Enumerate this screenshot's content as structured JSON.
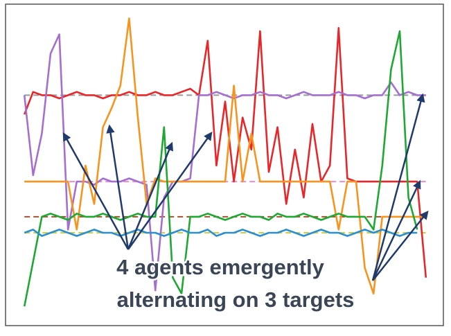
{
  "chart_data": {
    "type": "line",
    "annotation": [
      "4 agents emergently",
      "alternating on 3 targets"
    ],
    "xlim": [
      0,
      100
    ],
    "ylim": [
      0,
      100
    ],
    "x": [
      4,
      6,
      8,
      10,
      12,
      14,
      16,
      18,
      20,
      22,
      24,
      26,
      28,
      30,
      32,
      34,
      36,
      38,
      40,
      42,
      44,
      46,
      48,
      50,
      52,
      54,
      56,
      58,
      60,
      62,
      64,
      66,
      68,
      70,
      72,
      74,
      76,
      78,
      80,
      82,
      84,
      86,
      88,
      90,
      92,
      94,
      96
    ],
    "reference_lines": [
      {
        "value": 72,
        "color": "#9a9a9a"
      },
      {
        "value": 45,
        "color": "#f08ad0"
      },
      {
        "value": 34,
        "color": "#a0522d"
      },
      {
        "value": 29,
        "color": "#c8d23a"
      }
    ],
    "series": [
      {
        "color": "#e8262a",
        "values": [
          66,
          73,
          72,
          72,
          71,
          72,
          73,
          72,
          72,
          71,
          72,
          72,
          73,
          72,
          72,
          73,
          72,
          72,
          73,
          74,
          72,
          89,
          50,
          70,
          45,
          65,
          55,
          92,
          48,
          62,
          38,
          55,
          40,
          63,
          45,
          50,
          93,
          46,
          45,
          45,
          45,
          45,
          45,
          45,
          45,
          45,
          15
        ]
      },
      {
        "color": "#a46fd0",
        "values": [
          72,
          47,
          60,
          85,
          91,
          30,
          45,
          45,
          44,
          46,
          45,
          45,
          46,
          45,
          44,
          11,
          40,
          45,
          45,
          46,
          72,
          72,
          73,
          72,
          71,
          72,
          72,
          73,
          72,
          72,
          71,
          72,
          73,
          72,
          72,
          72,
          73,
          72,
          72,
          71,
          72,
          72,
          76,
          72,
          73,
          72,
          72
        ]
      },
      {
        "color": "#f7941d",
        "values": [
          45,
          45,
          45,
          45,
          45,
          45,
          30,
          50,
          38,
          62,
          68,
          75,
          96,
          65,
          38,
          46,
          45,
          45,
          45,
          45,
          45,
          45,
          45,
          45,
          75,
          45,
          60,
          45,
          45,
          45,
          45,
          45,
          45,
          45,
          45,
          45,
          30,
          45,
          45,
          18,
          10,
          34,
          34,
          34,
          34,
          34,
          34
        ]
      },
      {
        "color": "#1ea832",
        "values": [
          6,
          20,
          34,
          35,
          34,
          33,
          35,
          34,
          34,
          35,
          34,
          33,
          34,
          35,
          34,
          34,
          62,
          15,
          10,
          34,
          34,
          35,
          34,
          33,
          34,
          35,
          34,
          34,
          33,
          35,
          34,
          34,
          35,
          34,
          33,
          34,
          35,
          34,
          34,
          34,
          30,
          50,
          80,
          92,
          40,
          30,
          null
        ]
      },
      {
        "color": "#2a8fd0",
        "values": [
          29,
          30,
          28,
          29,
          30,
          29,
          28,
          29,
          30,
          29,
          29,
          28,
          29,
          30,
          29,
          29,
          28,
          29,
          30,
          29,
          29,
          30,
          28,
          29,
          29,
          30,
          29,
          28,
          29,
          29,
          30,
          29,
          28,
          29,
          30,
          29,
          29,
          28,
          29,
          30,
          29,
          30,
          29,
          28,
          29,
          29,
          null
        ]
      }
    ]
  }
}
